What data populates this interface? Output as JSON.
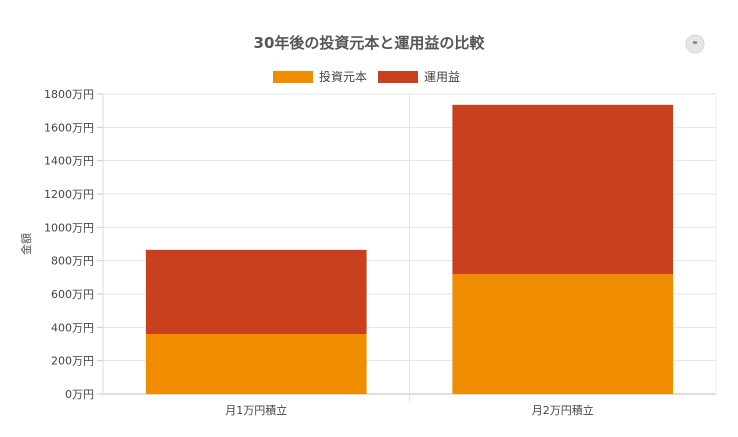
{
  "chart_data": {
    "type": "bar",
    "stacked": true,
    "title": "30年後の投資元本と運用益の比較",
    "ylabel": "金額",
    "xlabel": "",
    "categories": [
      "月1万円積立",
      "月2万円積立"
    ],
    "series": [
      {
        "name": "投資元本",
        "color": "#F08C00",
        "values": [
          360,
          720
        ]
      },
      {
        "name": "運用益",
        "color": "#C8401E",
        "values": [
          505,
          1015
        ]
      }
    ],
    "ylim": [
      0,
      1800
    ],
    "yticks": [
      0,
      200,
      400,
      600,
      800,
      1000,
      1200,
      1400,
      1600,
      1800
    ],
    "ytick_suffix": "万円",
    "grid": true,
    "legend_position": "top-center"
  },
  "ui": {
    "quote_button_label": "❞",
    "quote_button_icon": "quote-icon"
  }
}
